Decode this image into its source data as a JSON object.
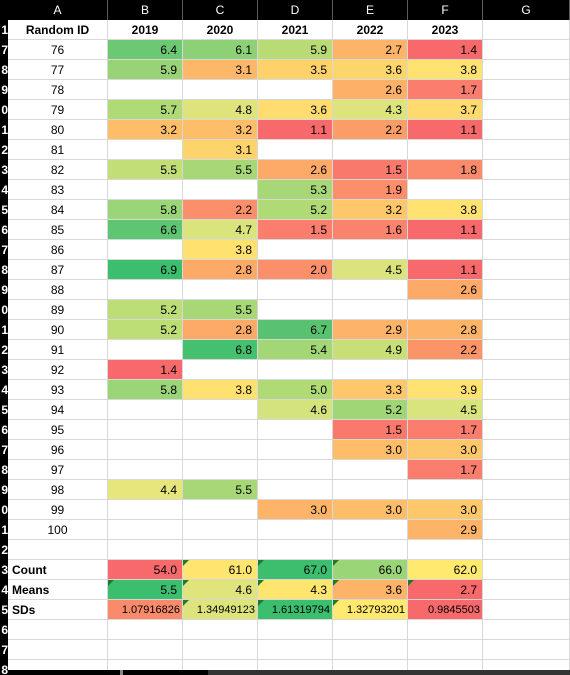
{
  "column_letters": [
    "A",
    "B",
    "C",
    "D",
    "E",
    "F",
    "G"
  ],
  "row_numbers": [
    "1",
    "7",
    "8",
    "9",
    "0",
    "1",
    "2",
    "3",
    "4",
    "5",
    "6",
    "7",
    "8",
    "9",
    "0",
    "1",
    "2",
    "3",
    "4",
    "5",
    "6",
    "7",
    "8",
    "9",
    "0",
    "1",
    "2",
    "3",
    "4",
    "5",
    "6",
    "7",
    "8"
  ],
  "headers": [
    "Random ID",
    "2019",
    "2020",
    "2021",
    "2022",
    "2023"
  ],
  "rows": [
    {
      "id": "76",
      "vals": [
        "6.4",
        "6.1",
        "5.9",
        "2.7",
        "1.4"
      ],
      "colors": [
        "#6cc872",
        "#8dd177",
        "#b8db75",
        "#fdb468",
        "#f8696b"
      ]
    },
    {
      "id": "77",
      "vals": [
        "5.9",
        "3.1",
        "3.5",
        "3.6",
        "3.8"
      ],
      "colors": [
        "#98d477",
        "#fdb768",
        "#fed16b",
        "#fcd66b",
        "#ffe26f"
      ]
    },
    {
      "id": "78",
      "vals": [
        "",
        "",
        "",
        "2.6",
        "1.7"
      ],
      "colors": [
        "",
        "",
        "",
        "#fdb067",
        "#fa7d6e"
      ]
    },
    {
      "id": "79",
      "vals": [
        "5.7",
        "4.8",
        "3.6",
        "4.3",
        "3.7"
      ],
      "colors": [
        "#b0da76",
        "#dfe37b",
        "#fedc6f",
        "#dde47c",
        "#feda6f"
      ]
    },
    {
      "id": "80",
      "vals": [
        "3.2",
        "3.2",
        "1.1",
        "2.2",
        "1.1"
      ],
      "colors": [
        "#fdbd69",
        "#fdbd69",
        "#f8696b",
        "#fb9d66",
        "#f8696b"
      ]
    },
    {
      "id": "81",
      "vals": [
        "",
        "3.1",
        "",
        "",
        ""
      ],
      "colors": [
        "",
        "#fdd46c",
        "",
        "",
        ""
      ]
    },
    {
      "id": "82",
      "vals": [
        "5.5",
        "5.5",
        "2.6",
        "1.5",
        "1.8"
      ],
      "colors": [
        "#c2de76",
        "#a8d876",
        "#fda967",
        "#f97a6d",
        "#fa8a6c"
      ]
    },
    {
      "id": "83",
      "vals": [
        "",
        "",
        "5.3",
        "1.9",
        ""
      ],
      "colors": [
        "",
        "",
        "#a7d776",
        "#fb8f6b",
        ""
      ]
    },
    {
      "id": "84",
      "vals": [
        "5.8",
        "2.2",
        "5.2",
        "3.2",
        "3.8"
      ],
      "colors": [
        "#9ad577",
        "#fc8f6b",
        "#b0da76",
        "#fec86a",
        "#ffe26f"
      ]
    },
    {
      "id": "85",
      "vals": [
        "6.6",
        "4.7",
        "1.5",
        "1.6",
        "1.1"
      ],
      "colors": [
        "#5ec672",
        "#dbe37c",
        "#fa7d6e",
        "#fa836d",
        "#f8696b"
      ]
    },
    {
      "id": "86",
      "vals": [
        "",
        "3.8",
        "",
        "",
        ""
      ],
      "colors": [
        "",
        "#fee16f",
        "",
        "",
        ""
      ]
    },
    {
      "id": "87",
      "vals": [
        "6.9",
        "2.8",
        "2.0",
        "4.5",
        "1.1"
      ],
      "colors": [
        "#3bbf6f",
        "#fda967",
        "#fb8f6b",
        "#dbe37c",
        "#f8696b"
      ]
    },
    {
      "id": "88",
      "vals": [
        "",
        "",
        "",
        "",
        "2.6"
      ],
      "colors": [
        "",
        "",
        "",
        "",
        "#fda967"
      ]
    },
    {
      "id": "89",
      "vals": [
        "5.2",
        "5.5",
        "",
        "",
        ""
      ],
      "colors": [
        "#bddd76",
        "#a8d876",
        "",
        "",
        ""
      ]
    },
    {
      "id": "90",
      "vals": [
        "5.2",
        "2.8",
        "6.7",
        "2.9",
        "2.8"
      ],
      "colors": [
        "#bddd76",
        "#fda967",
        "#59c271",
        "#fdb468",
        "#fdb468"
      ]
    },
    {
      "id": "91",
      "vals": [
        "",
        "6.8",
        "5.4",
        "4.9",
        "2.2"
      ],
      "colors": [
        "",
        "#44c06f",
        "#a3d776",
        "#c8df78",
        "#fb9467"
      ]
    },
    {
      "id": "92",
      "vals": [
        "1.4",
        "",
        "",
        "",
        ""
      ],
      "colors": [
        "#f8696b",
        "",
        "",
        "",
        ""
      ]
    },
    {
      "id": "93",
      "vals": [
        "5.8",
        "3.8",
        "5.0",
        "3.3",
        "3.9"
      ],
      "colors": [
        "#9ad577",
        "#fee16f",
        "#b0da76",
        "#fec86a",
        "#ffe26f"
      ]
    },
    {
      "id": "94",
      "vals": [
        "",
        "",
        "4.6",
        "5.2",
        "4.5"
      ],
      "colors": [
        "",
        "",
        "#d4e37d",
        "#a1d676",
        "#d9e47c"
      ]
    },
    {
      "id": "95",
      "vals": [
        "",
        "",
        "",
        "1.5",
        "1.7"
      ],
      "colors": [
        "",
        "",
        "",
        "#f97a6d",
        "#fa7d6e"
      ]
    },
    {
      "id": "96",
      "vals": [
        "",
        "",
        "",
        "3.0",
        "3.0"
      ],
      "colors": [
        "",
        "",
        "",
        "#fdbd69",
        "#fec86a"
      ]
    },
    {
      "id": "97",
      "vals": [
        "",
        "",
        "",
        "",
        "1.7"
      ],
      "colors": [
        "",
        "",
        "",
        "",
        "#fa7d6e"
      ]
    },
    {
      "id": "98",
      "vals": [
        "4.4",
        "5.5",
        "",
        "",
        ""
      ],
      "colors": [
        "#e6e67d",
        "#a8d876",
        "",
        "",
        ""
      ]
    },
    {
      "id": "99",
      "vals": [
        "",
        "",
        "3.0",
        "3.0",
        "3.0"
      ],
      "colors": [
        "",
        "",
        "#fdb468",
        "#fdbd69",
        "#fec86a"
      ]
    },
    {
      "id": "100",
      "vals": [
        "",
        "",
        "",
        "",
        "2.9"
      ],
      "colors": [
        "",
        "",
        "",
        "",
        "#fdb468"
      ]
    }
  ],
  "summary": [
    {
      "label": "Count",
      "vals": [
        "54.0",
        "61.0",
        "67.0",
        "66.0",
        "62.0"
      ],
      "colors": [
        "#f8696b",
        "#fee56f",
        "#3bbf6f",
        "#9ad577",
        "#ffe96f"
      ],
      "tri": [
        false,
        true,
        true,
        true,
        false
      ]
    },
    {
      "label": "Means",
      "vals": [
        "5.5",
        "4.6",
        "4.3",
        "3.6",
        "2.7"
      ],
      "colors": [
        "#3bbf6f",
        "#e0e47c",
        "#fee56f",
        "#fdb468",
        "#f8696b"
      ],
      "tri": [
        true,
        true,
        true,
        true,
        true
      ]
    },
    {
      "label": "SDs",
      "vals": [
        "1.07916826",
        "1.34949123",
        "1.61319794",
        "1.32793201",
        "0.9845503"
      ],
      "colors": [
        "#fa8a6c",
        "#dee47c",
        "#3bbf6f",
        "#ffe96f",
        "#f8696b"
      ],
      "tri": [
        false,
        true,
        true,
        true,
        false
      ]
    }
  ]
}
